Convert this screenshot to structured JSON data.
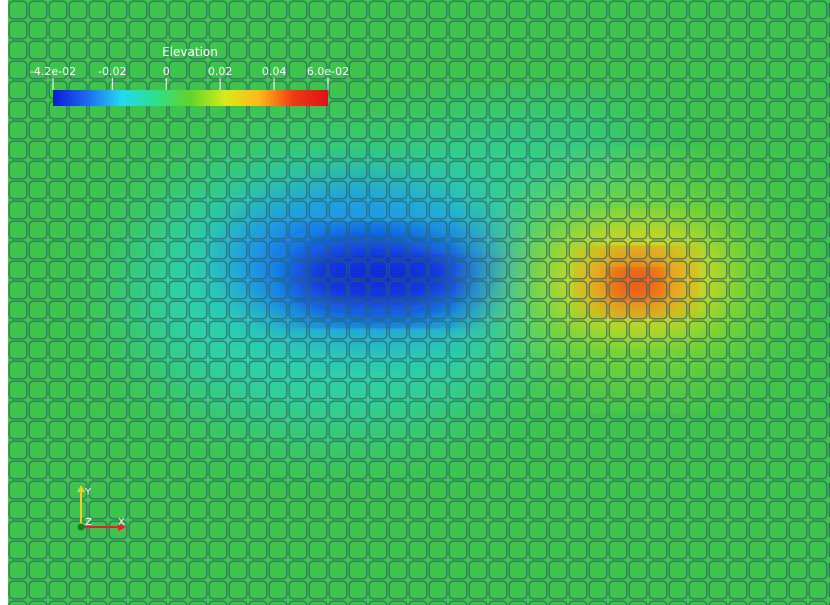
{
  "scalar_bar": {
    "title": "Elevation",
    "labels": [
      "-4.2e-02",
      "-0.02",
      "0",
      "0.02",
      "0.04",
      "6.0e-02"
    ],
    "label_values": [
      -0.042,
      -0.02,
      0,
      0.02,
      0.04,
      0.06
    ],
    "range": [
      -0.042,
      0.06
    ],
    "colormap": [
      "#0b1ad6",
      "#1c6cf0",
      "#23d8f0",
      "#2ee08a",
      "#62d42a",
      "#d6ea1a",
      "#ffb81a",
      "#f03a14",
      "#e0101a"
    ]
  },
  "colors": {
    "background_field": "#3ec44c",
    "grid_line": "#2a5e63",
    "axis_x": "#e0202a",
    "axis_y": "#f0d020",
    "axis_origin": "#1a7a2a"
  },
  "field": {
    "type": "heatmap",
    "features": [
      {
        "name": "depression",
        "value": -0.042
      },
      {
        "name": "bump",
        "value": 0.06
      }
    ]
  },
  "orientation_axes": {
    "x_label": "X",
    "y_label": "Y",
    "z_label": "Z"
  }
}
